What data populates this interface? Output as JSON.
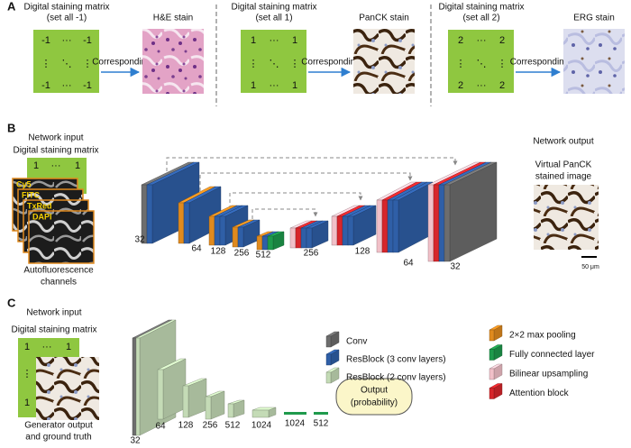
{
  "panel_a": {
    "label": "A",
    "blocks": [
      {
        "matrix_title": [
          "Digital staining matrix",
          "(set all -1)"
        ],
        "cells": [
          "-1",
          "···",
          "-1",
          "⋮",
          "⋱",
          "⋮",
          "-1",
          "···",
          "-1"
        ],
        "arrow_label": "Corresponding",
        "stain": "H&E stain"
      },
      {
        "matrix_title": [
          "Digital staining matrix",
          "(set all 1)"
        ],
        "cells": [
          "1",
          "···",
          "1",
          "⋮",
          "⋱",
          "⋮",
          "1",
          "···",
          "1"
        ],
        "arrow_label": "Corresponding",
        "stain": "PanCK stain"
      },
      {
        "matrix_title": [
          "Digital staining matrix",
          "(set all 2)"
        ],
        "cells": [
          "2",
          "···",
          "2",
          "⋮",
          "⋱",
          "⋮",
          "2",
          "···",
          "2"
        ],
        "arrow_label": "Corresponding",
        "stain": "ERG stain"
      }
    ]
  },
  "panel_b": {
    "label": "B",
    "input_title": [
      "Network input",
      "Digital staining matrix"
    ],
    "matrix_cells": [
      "1",
      "···",
      "1"
    ],
    "channels": [
      "Cy5",
      "FITC",
      "TxRed",
      "DAPI"
    ],
    "channels_caption": [
      "Autofluorescence",
      "channels"
    ],
    "layer_labels": [
      "32",
      "64",
      "128",
      "256",
      "512",
      "256",
      "128",
      "64",
      "32"
    ],
    "output_title": "Network output",
    "output_caption": [
      "Virtual PanCK",
      "stained image"
    ],
    "scale_bar": "50 μm"
  },
  "panel_c": {
    "label": "C",
    "input_title": [
      "Network input",
      "Digital staining matrix"
    ],
    "matrix_cells": [
      "1",
      "···",
      "1",
      "⋮",
      "1"
    ],
    "input_caption": [
      "Generator output",
      "and ground truth"
    ],
    "layer_labels": [
      "32",
      "64",
      "128",
      "256",
      "512",
      "1024",
      "1024",
      "512"
    ],
    "output": [
      "Output",
      "(probability)"
    ]
  },
  "legend": [
    {
      "label": "Conv",
      "color": "#6d6d6d"
    },
    {
      "label": "ResBlock (3 conv layers)",
      "color": "#2f5fa7"
    },
    {
      "label": "ResBlock (2 conv layers)",
      "color": "#c4dbb6"
    },
    {
      "label": "2×2 max pooling",
      "color": "#e08a1e"
    },
    {
      "label": "Fully connected layer",
      "color": "#1f9a4c"
    },
    {
      "label": "Bilinear upsampling",
      "color": "#f1c0c8"
    },
    {
      "label": "Attention block",
      "color": "#d7262b"
    }
  ]
}
